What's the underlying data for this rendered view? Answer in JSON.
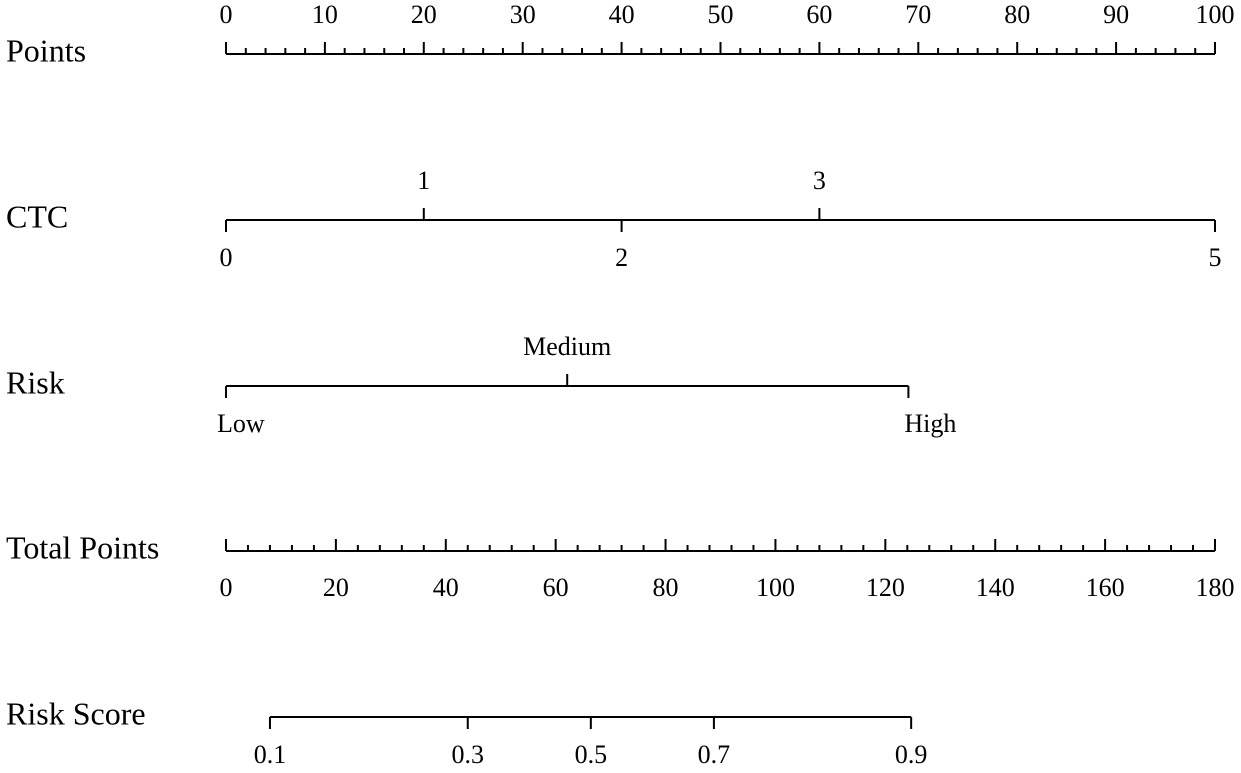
{
  "chart_data": {
    "type": "nomogram",
    "rows": [
      {
        "name": "Points",
        "xlim": [
          0,
          100
        ],
        "xticks": [
          0,
          10,
          20,
          30,
          40,
          50,
          60,
          70,
          80,
          90,
          100
        ],
        "minor_ticks": [
          2,
          4,
          6,
          8,
          12,
          14,
          16,
          18,
          22,
          24,
          26,
          28,
          32,
          34,
          36,
          38,
          42,
          44,
          46,
          48,
          52,
          54,
          56,
          58,
          62,
          64,
          66,
          68,
          72,
          74,
          76,
          78,
          82,
          84,
          86,
          88,
          92,
          94,
          96,
          98
        ],
        "label_side": "above"
      },
      {
        "name": "CTC",
        "axis": "points",
        "values": [
          0,
          1,
          2,
          3,
          5
        ],
        "positions": [
          0,
          20,
          40,
          60,
          100
        ],
        "label_side": [
          "below",
          "above",
          "below",
          "above",
          "below"
        ]
      },
      {
        "name": "Risk",
        "axis": "points",
        "categories": [
          "Low",
          "Medium",
          "High"
        ],
        "positions": [
          0,
          34.5,
          69
        ],
        "label_side": [
          "below",
          "above",
          "below"
        ]
      },
      {
        "name": "Total Points",
        "xlim": [
          0,
          180
        ],
        "xticks": [
          0,
          20,
          40,
          60,
          80,
          100,
          120,
          140,
          160,
          180
        ],
        "minor_ticks": [
          4,
          8,
          12,
          16,
          24,
          28,
          32,
          36,
          44,
          48,
          52,
          56,
          64,
          68,
          72,
          76,
          84,
          88,
          92,
          96,
          104,
          108,
          112,
          116,
          124,
          128,
          132,
          136,
          144,
          148,
          152,
          156,
          164,
          168,
          172,
          176
        ],
        "label_side": "below"
      },
      {
        "name": "Risk Score",
        "axis": "total",
        "values": [
          0.1,
          0.3,
          0.5,
          0.7,
          0.9
        ],
        "positions": [
          8,
          44,
          66.4,
          88.8,
          124.7
        ],
        "label_side": [
          "below",
          "below",
          "below",
          "below",
          "below"
        ]
      }
    ]
  }
}
